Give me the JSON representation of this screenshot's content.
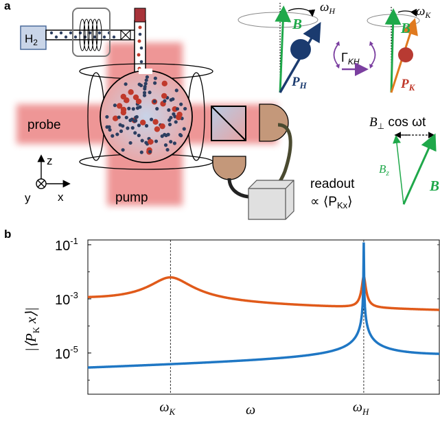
{
  "panel_a": {
    "panel_label": "a",
    "h2_label": "H",
    "h2_sub": "2",
    "probe_label": "probe",
    "pump_label": "pump",
    "axis_z": "z",
    "axis_x": "x",
    "axis_y": "y",
    "readout_line1": "readout",
    "readout_line2": "∝ ⟨P",
    "readout_sub": "Kx",
    "readout_close": "⟩",
    "omega_h": "ω",
    "omega_h_sub": "H",
    "omega_k": "ω",
    "omega_k_sub": "K",
    "b_label_h": "B",
    "b_label_k": "B",
    "p_label_h": "P",
    "p_label_h_sub": "H",
    "p_label_k": "P",
    "p_label_k_sub": "K",
    "gamma_label": "Γ",
    "gamma_sub": "KH",
    "bperp_label": "B",
    "bperp_sub": "⊥",
    "bperp_rest": " cos ωt",
    "bz_label": "B",
    "bz_sub": "z",
    "b_label_vec": "B",
    "colors": {
      "green": "#1fa84a",
      "navy": "#1b3b6f",
      "orange": "#e07a1f",
      "red_atom": "#c0392b",
      "purple": "#7b3fa0",
      "beam": "#e87070"
    }
  },
  "panel_b": {
    "panel_label": "b",
    "chart_data": {
      "type": "line",
      "xlabel": "ω",
      "ylabel": "|⟨P_K x⟩|",
      "yscale": "log",
      "ylim": [
        3e-07,
        0.15
      ],
      "xlim": [
        0,
        1
      ],
      "y_ticks": [
        {
          "base": "10",
          "exp": "-1",
          "value": 0.1
        },
        {
          "base": "10",
          "exp": "-3",
          "value": 0.001
        },
        {
          "base": "10",
          "exp": "-5",
          "value": 1e-05
        }
      ],
      "x_ticks": [
        {
          "main": "ω",
          "sub": "K",
          "value": 0.235
        },
        {
          "main": "ω",
          "sub": "H",
          "value": 0.785
        }
      ],
      "series": [
        {
          "color": "#e05a1a",
          "peaks": [
            0.235,
            0.785
          ],
          "samples_x": [
            0.0,
            0.1,
            0.2,
            0.235,
            0.3,
            0.5,
            0.7,
            0.775,
            0.785,
            0.8,
            0.9,
            1.0
          ],
          "samples_y": [
            0.0008,
            0.0014,
            0.004,
            0.0055,
            0.0025,
            0.0008,
            0.0005,
            0.0012,
            0.007,
            0.0006,
            0.0003,
            0.00022
          ]
        },
        {
          "color": "#1f77c4",
          "peaks": [
            0.785
          ],
          "samples_x": [
            0.0,
            0.2,
            0.4,
            0.6,
            0.75,
            0.78,
            0.785,
            0.79,
            0.85,
            1.0
          ],
          "samples_y": [
            2.3e-06,
            2.9e-06,
            4.5e-06,
            1.1e-05,
            8e-05,
            0.001,
            0.12,
            0.001,
            3e-05,
            7.5e-06
          ]
        }
      ]
    }
  }
}
